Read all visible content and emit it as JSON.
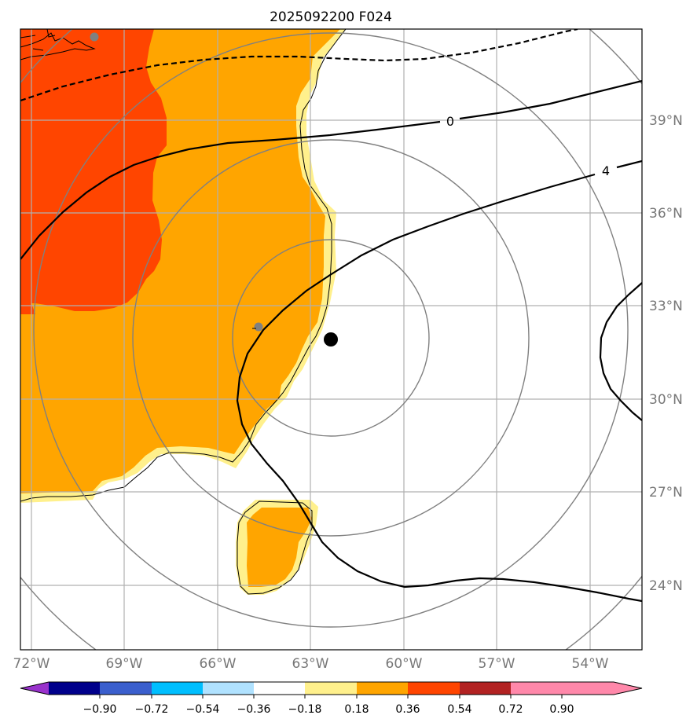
{
  "title": "2025092200 F024",
  "map": {
    "lat_labels": [
      "39°N",
      "36°N",
      "33°N",
      "30°N",
      "27°N",
      "24°N"
    ],
    "lon_labels": [
      "72°W",
      "69°W",
      "66°W",
      "63°W",
      "60°W",
      "57°W",
      "54°W"
    ],
    "contour_labels": [
      "0",
      "4"
    ],
    "center_marker": "storm-center",
    "colors": {
      "orange_red": "#ff4500",
      "orange": "#ffa500",
      "light_yellow": "#fff08c",
      "range_rings": "#808080",
      "grid": "#b0b0b0"
    }
  },
  "colorbar": {
    "ticks": [
      "−0.90",
      "−0.72",
      "−0.54",
      "−0.36",
      "−0.18",
      "0.18",
      "0.36",
      "0.54",
      "0.72",
      "0.90"
    ],
    "colors": [
      "#9932cc",
      "#00008b",
      "#3a5fcd",
      "#00bfff",
      "#b0e2ff",
      "#ffffff",
      "#fff08c",
      "#ffa500",
      "#ff4500",
      "#b22222",
      "#ff88aa",
      "#ff88aa"
    ]
  }
}
